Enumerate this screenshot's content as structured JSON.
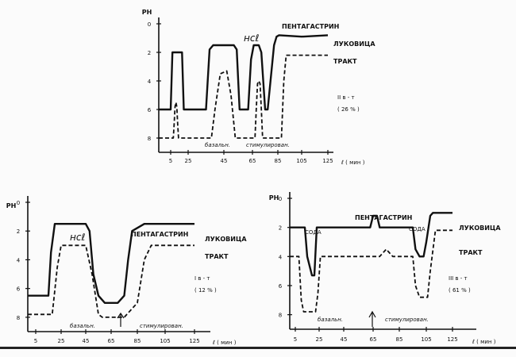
{
  "chart_data": [
    {
      "type": "line",
      "ylabel": "РН",
      "xlabel": "ℓ ( мин )",
      "xticks": [
        5,
        25,
        45,
        65,
        85,
        105,
        125
      ],
      "yticks": [
        0,
        2,
        4,
        6,
        8
      ],
      "xlim": [
        0,
        130
      ],
      "ylim": [
        0,
        9
      ],
      "y_inverted": true,
      "series": [
        {
          "name": "ЛУКОВИЦА",
          "style": "solid",
          "x": [
            0,
            5,
            7,
            9,
            16,
            18,
            20,
            35,
            37,
            39,
            52,
            54,
            56,
            62,
            64,
            66,
            70,
            72,
            75,
            77,
            82,
            84,
            86,
            105,
            125
          ],
          "y": [
            6,
            6,
            2,
            2,
            2,
            2,
            6,
            6,
            1.8,
            1.5,
            1.5,
            1.8,
            6,
            6,
            2.5,
            1.5,
            1.5,
            2,
            6,
            6,
            1.5,
            0.9,
            0.8,
            0.9,
            0.8
          ]
        },
        {
          "name": "ТРАКТ",
          "style": "dashed",
          "x": [
            0,
            8,
            9,
            10,
            11,
            12,
            13,
            14,
            38,
            40,
            43,
            47,
            50,
            53,
            67,
            68,
            69,
            70,
            71,
            72,
            73,
            88,
            90,
            92,
            125
          ],
          "y": [
            8,
            8,
            7,
            5.8,
            5.5,
            5.8,
            7,
            8,
            8,
            6,
            3.5,
            3.3,
            5,
            8,
            8,
            6,
            4.2,
            4,
            4.2,
            6,
            8,
            8,
            4,
            2.2,
            2.2
          ]
        }
      ],
      "annotations": {
        "agent": "ПЕНТАГАСТРИН",
        "hcl": "нсℓ",
        "group": "ΙΙ  в - т",
        "percent": "( 26 % )",
        "basal": "базальн.",
        "stimulated": "стимулирован."
      }
    },
    {
      "type": "line",
      "ylabel": "РН",
      "xlabel": "ℓ ( мин )",
      "xticks": [
        5,
        25,
        45,
        65,
        85,
        105,
        125
      ],
      "yticks": [
        0,
        2,
        4,
        6,
        8
      ],
      "xlim": [
        0,
        130
      ],
      "ylim": [
        0,
        9
      ],
      "y_inverted": true,
      "series": [
        {
          "name": "ЛУКОВИЦА",
          "style": "solid",
          "x": [
            0,
            15,
            17,
            20,
            45,
            48,
            51,
            55,
            60,
            70,
            75,
            78,
            81,
            90,
            110,
            125
          ],
          "y": [
            6.5,
            6.5,
            3.5,
            1.5,
            1.5,
            2,
            5,
            6.5,
            7,
            7,
            6.5,
            4,
            2,
            1.5,
            1.5,
            1.5
          ]
        },
        {
          "name": "ТРАКТ",
          "style": "dashed",
          "x": [
            0,
            18,
            22,
            25,
            45,
            50,
            55,
            58,
            75,
            85,
            90,
            95,
            110,
            125
          ],
          "y": [
            7.8,
            7.8,
            4.5,
            3,
            3,
            5,
            7.8,
            8,
            8,
            7,
            4,
            3,
            3,
            3
          ]
        }
      ],
      "annotations": {
        "agent": "ПЕНТАГАСТРИН",
        "hcl": "нсℓ",
        "group": "Ι  в - т",
        "percent": "( 12 % )",
        "basal": "базальн.",
        "stimulated": "стимулирован."
      }
    },
    {
      "type": "line",
      "ylabel": "РН",
      "xlabel": "ℓ ( мин )",
      "xticks": [
        5,
        25,
        45,
        65,
        85,
        105,
        125
      ],
      "yticks": [
        0,
        2,
        4,
        6,
        8
      ],
      "xlim": [
        0,
        130
      ],
      "ylim": [
        0,
        9
      ],
      "y_inverted": true,
      "series": [
        {
          "name": "ЛУКОВИЦА",
          "style": "solid",
          "x": [
            0,
            13,
            15,
            19,
            21,
            23,
            60,
            63,
            65,
            68,
            70,
            95,
            97,
            100,
            103,
            105,
            108,
            110,
            125
          ],
          "y": [
            2,
            2,
            4,
            5.3,
            5.3,
            2,
            2,
            2,
            1.2,
            1.2,
            2,
            2,
            3.5,
            4,
            4,
            3,
            1.2,
            1,
            1
          ]
        },
        {
          "name": "ТРАКТ",
          "style": "dashed",
          "x": [
            0,
            8,
            10,
            12,
            22,
            24,
            26,
            55,
            70,
            75,
            80,
            95,
            97,
            100,
            106,
            108,
            112,
            125
          ],
          "y": [
            4,
            4,
            7,
            7.8,
            7.8,
            6.5,
            4,
            4,
            4,
            3.5,
            4,
            4,
            6,
            6.8,
            6.8,
            5,
            2.2,
            2.2
          ]
        }
      ],
      "annotations": {
        "agent": "ПЕНТАГАСТРИН",
        "soda": "СОДА",
        "group": "ΙΙΙ  в - т",
        "percent": "( 61 % )",
        "basal": "базальн.",
        "stimulated": "стимулирован."
      }
    }
  ]
}
